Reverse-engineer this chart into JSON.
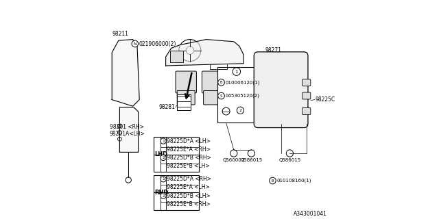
{
  "bg_color": "#ffffff",
  "line_color": "#000000",
  "fig_id": "A343001041",
  "lhd_rows": [
    [
      "1",
      "98225D*A <LH>"
    ],
    [
      "",
      "98225E*A <RH>"
    ],
    [
      "2",
      "98225D*B <RH>"
    ],
    [
      "",
      "98225E*B <LH>"
    ]
  ],
  "rhd_rows": [
    [
      "1",
      "98225D*A <RH>"
    ],
    [
      "",
      "98225E*A <LH>"
    ],
    [
      "2",
      "98225D*B <LH>"
    ],
    [
      "",
      "98225E*B <RH>"
    ]
  ]
}
